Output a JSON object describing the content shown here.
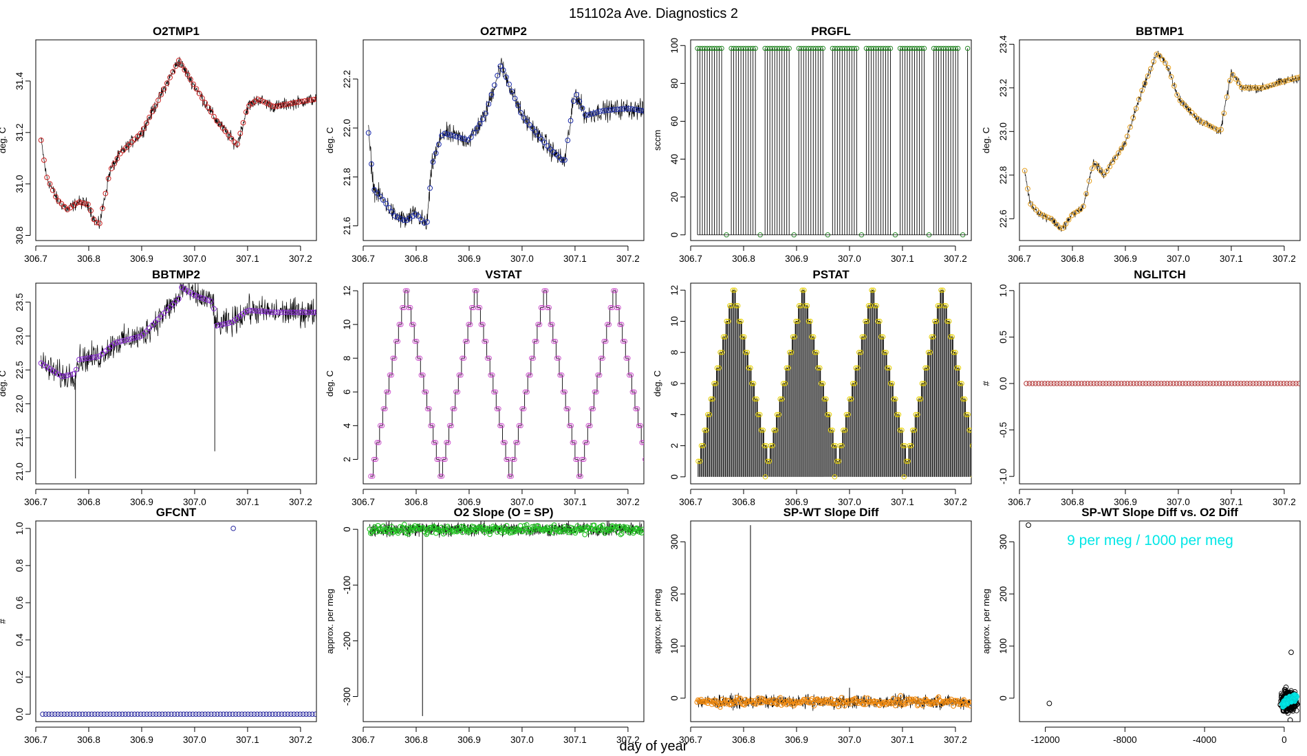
{
  "page": {
    "title": "151102a   Ave. Diagnostics 2",
    "shared_xlabel": "day of year"
  },
  "chart_data": [
    {
      "id": "o2tmp1",
      "type": "line",
      "title": "O2TMP1",
      "ylabel": "deg. C",
      "xlim": [
        306.7,
        307.23
      ],
      "ylim": [
        30.78,
        31.56
      ],
      "xticks": [
        306.7,
        306.8,
        306.9,
        307.0,
        307.1,
        307.2
      ],
      "xtick_labels": [
        "306.7",
        "306.8",
        "306.9",
        "307.0",
        "307.1",
        "307.2"
      ],
      "yticks": [
        30.8,
        31.0,
        31.2,
        31.4
      ],
      "ytick_labels": [
        "30.8",
        "31.0",
        "31.2",
        "31.4"
      ],
      "marker_color": "#cc2222",
      "noise": 0.012,
      "series": [
        {
          "name": "O2TMP1",
          "x": [
            306.71,
            306.72,
            306.74,
            306.76,
            306.78,
            306.8,
            306.81,
            306.82,
            306.84,
            306.86,
            306.9,
            306.94,
            306.97,
            307.0,
            307.04,
            307.08,
            307.1,
            307.12,
            307.15,
            307.2,
            307.23
          ],
          "y": [
            31.17,
            31.03,
            30.94,
            30.9,
            30.93,
            30.92,
            30.86,
            30.84,
            31.05,
            31.12,
            31.2,
            31.36,
            31.48,
            31.38,
            31.25,
            31.15,
            31.3,
            31.33,
            31.3,
            31.32,
            31.33
          ]
        }
      ]
    },
    {
      "id": "o2tmp2",
      "type": "line",
      "title": "O2TMP2",
      "ylabel": "deg. C",
      "xlim": [
        306.7,
        307.23
      ],
      "ylim": [
        21.54,
        22.36
      ],
      "xticks": [
        306.7,
        306.8,
        306.9,
        307.0,
        307.1,
        307.2
      ],
      "xtick_labels": [
        "306.7",
        "306.8",
        "306.9",
        "307.0",
        "307.1",
        "307.2"
      ],
      "yticks": [
        21.6,
        21.8,
        22.0,
        22.2
      ],
      "ytick_labels": [
        "21.6",
        "21.8",
        "22.0",
        "22.2"
      ],
      "marker_color": "#1a2aa8",
      "noise": 0.02,
      "series": [
        {
          "name": "O2TMP2",
          "x": [
            306.71,
            306.72,
            306.74,
            306.76,
            306.78,
            306.8,
            306.82,
            306.83,
            306.85,
            306.9,
            306.93,
            306.96,
            307.0,
            307.05,
            307.08,
            307.1,
            307.12,
            307.15,
            307.2,
            307.23
          ],
          "y": [
            21.98,
            21.75,
            21.7,
            21.64,
            21.62,
            21.65,
            21.6,
            21.85,
            21.98,
            21.95,
            22.05,
            22.26,
            22.05,
            21.92,
            21.86,
            22.15,
            22.05,
            22.07,
            22.08,
            22.07
          ]
        }
      ]
    },
    {
      "id": "prgfl",
      "type": "spikes",
      "title": "PRGFL",
      "ylabel": "sccm",
      "xlim": [
        306.7,
        307.23
      ],
      "ylim": [
        -3,
        103
      ],
      "xticks": [
        306.7,
        306.8,
        306.9,
        307.0,
        307.1,
        307.2
      ],
      "xtick_labels": [
        "306.7",
        "306.8",
        "306.9",
        "307.0",
        "307.1",
        "307.2"
      ],
      "yticks": [
        0,
        20,
        40,
        60,
        80,
        100
      ],
      "ytick_labels": [
        "0",
        "20",
        "40",
        "60",
        "80",
        "100"
      ],
      "marker_color": "#2a8a2a",
      "high": 98.5,
      "low": 0,
      "period": 0.0625,
      "pulses": 6,
      "x0": 306.713
    },
    {
      "id": "bbtmp1",
      "type": "line",
      "title": "BBTMP1",
      "ylabel": "deg. C",
      "xlim": [
        306.7,
        307.23
      ],
      "ylim": [
        22.5,
        23.42
      ],
      "xticks": [
        306.7,
        306.8,
        306.9,
        307.0,
        307.1,
        307.2
      ],
      "xtick_labels": [
        "306.7",
        "306.8",
        "306.9",
        "307.0",
        "307.1",
        "307.2"
      ],
      "yticks": [
        22.6,
        22.8,
        23.0,
        23.2,
        23.4
      ],
      "ytick_labels": [
        "22.6",
        "22.8",
        "23.0",
        "23.2",
        "23.4"
      ],
      "marker_color": "#e6a020",
      "noise": 0.01,
      "series": [
        {
          "name": "BBTMP1",
          "x": [
            306.71,
            306.72,
            306.74,
            306.76,
            306.78,
            306.8,
            306.82,
            306.84,
            306.86,
            306.9,
            306.93,
            306.96,
            306.98,
            307.0,
            307.04,
            307.08,
            307.1,
            307.12,
            307.16,
            307.2,
            307.23
          ],
          "y": [
            22.82,
            22.67,
            22.62,
            22.6,
            22.55,
            22.62,
            22.65,
            22.86,
            22.8,
            22.95,
            23.18,
            23.36,
            23.3,
            23.15,
            23.05,
            23.0,
            23.27,
            23.2,
            23.2,
            23.23,
            23.25
          ]
        }
      ]
    },
    {
      "id": "bbtmp2",
      "type": "line",
      "title": "BBTMP2",
      "ylabel": "deg. C",
      "xlim": [
        306.7,
        307.23
      ],
      "ylim": [
        20.82,
        23.78
      ],
      "xticks": [
        306.7,
        306.8,
        306.9,
        307.0,
        307.1,
        307.2
      ],
      "xtick_labels": [
        "306.7",
        "306.8",
        "306.9",
        "307.0",
        "307.1",
        "307.2"
      ],
      "yticks": [
        21.0,
        21.5,
        22.0,
        22.5,
        23.0,
        23.5
      ],
      "ytick_labels": [
        "21.0",
        "21.5",
        "22.0",
        "22.5",
        "23.0",
        "23.5"
      ],
      "marker_color": "#8a2ad6",
      "noise": 0.1,
      "spikes": [
        {
          "x": 306.775,
          "y": 20.9
        },
        {
          "x": 307.038,
          "y": 21.3
        }
      ],
      "series": [
        {
          "name": "BBTMP2",
          "x": [
            306.71,
            306.73,
            306.75,
            306.775,
            306.78,
            306.82,
            306.85,
            306.9,
            306.95,
            306.97,
            306.975,
            307.0,
            307.035,
            307.04,
            307.07,
            307.1,
            307.15,
            307.2,
            307.23
          ],
          "y": [
            22.6,
            22.5,
            22.4,
            22.45,
            22.65,
            22.7,
            22.9,
            23.0,
            23.4,
            23.55,
            23.72,
            23.6,
            23.5,
            23.15,
            23.2,
            23.38,
            23.35,
            23.35,
            23.35
          ]
        }
      ]
    },
    {
      "id": "vstat",
      "type": "staircase",
      "title": "VSTAT",
      "ylabel": "deg. C",
      "xlim": [
        306.7,
        307.23
      ],
      "ylim": [
        0.55,
        12.45
      ],
      "xticks": [
        306.7,
        306.8,
        306.9,
        307.0,
        307.1,
        307.2
      ],
      "xtick_labels": [
        "306.7",
        "306.8",
        "306.9",
        "307.0",
        "307.1",
        "307.2"
      ],
      "yticks": [
        2,
        4,
        6,
        8,
        10,
        12
      ],
      "ytick_labels": [
        "2",
        "4",
        "6",
        "8",
        "10",
        "12"
      ],
      "marker_color": "#cc55cc",
      "steps": [
        1,
        2,
        3,
        4,
        5,
        6,
        7,
        8,
        9,
        10,
        11,
        12,
        11,
        10,
        9,
        8,
        7,
        6,
        5,
        4,
        3,
        2
      ],
      "cycles": 4,
      "x0": 306.713,
      "dx": 0.005954
    },
    {
      "id": "pstat",
      "type": "staircase_bars",
      "title": "PSTAT",
      "ylabel": "deg. C",
      "xlim": [
        306.7,
        307.23
      ],
      "ylim": [
        -0.45,
        12.45
      ],
      "xticks": [
        306.7,
        306.8,
        306.9,
        307.0,
        307.1,
        307.2
      ],
      "xtick_labels": [
        "306.7",
        "306.8",
        "306.9",
        "307.0",
        "307.1",
        "307.2"
      ],
      "yticks": [
        0,
        2,
        4,
        6,
        8,
        10,
        12
      ],
      "ytick_labels": [
        "0",
        "2",
        "4",
        "6",
        "8",
        "10",
        "12"
      ],
      "marker_color": "#e6d000",
      "steps": [
        1,
        2,
        3,
        4,
        5,
        6,
        7,
        8,
        9,
        10,
        11,
        12,
        11,
        10,
        9,
        8,
        7,
        6,
        5,
        4,
        3,
        2
      ],
      "cycles": 4,
      "x0": 306.713,
      "dx": 0.005954
    },
    {
      "id": "nglitch",
      "type": "scatter_const",
      "title": "NGLITCH",
      "ylabel": "#",
      "xlim": [
        306.7,
        307.23
      ],
      "ylim": [
        -1.08,
        1.08
      ],
      "xticks": [
        306.7,
        306.8,
        306.9,
        307.0,
        307.1,
        307.2
      ],
      "xtick_labels": [
        "306.7",
        "306.8",
        "306.9",
        "307.0",
        "307.1",
        "307.2"
      ],
      "yticks": [
        -1.0,
        -0.5,
        0.0,
        0.5,
        1.0
      ],
      "ytick_labels": [
        "-1.0",
        "-0.5",
        "0.0",
        "0.5",
        "1.0"
      ],
      "marker_color": "#b03030",
      "value": 0,
      "n": 90,
      "x0": 306.713,
      "x1": 307.228
    },
    {
      "id": "gfcnt",
      "type": "scatter_const",
      "title": "GFCNT",
      "ylabel": "#",
      "xlim": [
        306.7,
        307.23
      ],
      "ylim": [
        -0.04,
        1.04
      ],
      "xticks": [
        306.7,
        306.8,
        306.9,
        307.0,
        307.1,
        307.2
      ],
      "xtick_labels": [
        "306.7",
        "306.8",
        "306.9",
        "307.0",
        "307.1",
        "307.2"
      ],
      "yticks": [
        0.0,
        0.2,
        0.4,
        0.6,
        0.8,
        1.0
      ],
      "ytick_labels": [
        "0.0",
        "0.2",
        "0.4",
        "0.6",
        "0.8",
        "1.0"
      ],
      "marker_color": "#2a2aa0",
      "value": 0,
      "n": 90,
      "x0": 306.713,
      "x1": 307.228,
      "outliers": [
        {
          "x": 307.073,
          "y": 1.0
        }
      ]
    },
    {
      "id": "o2slope",
      "type": "noisy_band",
      "title": "O2 Slope (O = SP)",
      "ylabel": "approx. per meg",
      "xlim": [
        306.7,
        307.23
      ],
      "ylim": [
        -345,
        15
      ],
      "xticks": [
        306.7,
        306.8,
        306.9,
        307.0,
        307.1,
        307.2
      ],
      "xtick_labels": [
        "306.7",
        "306.8",
        "306.9",
        "307.0",
        "307.1",
        "307.2"
      ],
      "yticks": [
        -300,
        -200,
        -100,
        0
      ],
      "ytick_labels": [
        "-300",
        "-200",
        "-100",
        "0"
      ],
      "marker_color": "#22c022",
      "center": 0,
      "amp": 9,
      "spikes": [
        {
          "x": 306.812,
          "y": -335
        }
      ]
    },
    {
      "id": "spwtdiff",
      "type": "noisy_band",
      "title": "SP-WT Slope Diff",
      "ylabel": "approx. per meg",
      "xlim": [
        306.7,
        307.23
      ],
      "ylim": [
        -45,
        340
      ],
      "xticks": [
        306.7,
        306.8,
        306.9,
        307.0,
        307.1,
        307.2
      ],
      "xtick_labels": [
        "306.7",
        "306.8",
        "306.9",
        "307.0",
        "307.1",
        "307.2"
      ],
      "yticks": [
        0,
        100,
        200,
        300
      ],
      "ytick_labels": [
        "0",
        "100",
        "200",
        "300"
      ],
      "marker_color": "#f08a10",
      "center": -7,
      "amp": 9,
      "spikes": [
        {
          "x": 306.813,
          "y": 332
        },
        {
          "x": 307.0,
          "y": 20
        }
      ]
    },
    {
      "id": "spwt_vs_o2",
      "type": "scatter",
      "title": "SP-WT Slope Diff vs. O2 Diff",
      "ylabel": "approx. per meg",
      "xlim": [
        -13300,
        800
      ],
      "ylim": [
        -45,
        340
      ],
      "xticks": [
        -12000,
        -8000,
        -4000,
        0
      ],
      "xtick_labels": [
        "-12000",
        "-8000",
        "-4000",
        "0"
      ],
      "yticks": [
        0,
        100,
        200,
        300
      ],
      "ytick_labels": [
        "0",
        "100",
        "200",
        "300"
      ],
      "annotation": "9 per meg / 1000 per meg",
      "annotation_color": "#00e6e6",
      "points": [
        {
          "x": -12850,
          "y": 332
        },
        {
          "x": -11800,
          "y": -10
        },
        {
          "x": 350,
          "y": 88
        },
        {
          "x": 300,
          "y": -42
        }
      ],
      "cluster": {
        "x_center": 250,
        "x_spread": 350,
        "y_center": -5,
        "y_spread": 18
      },
      "fit_line": {
        "x": [
          -100,
          600
        ],
        "y": [
          -10,
          2
        ]
      }
    }
  ]
}
